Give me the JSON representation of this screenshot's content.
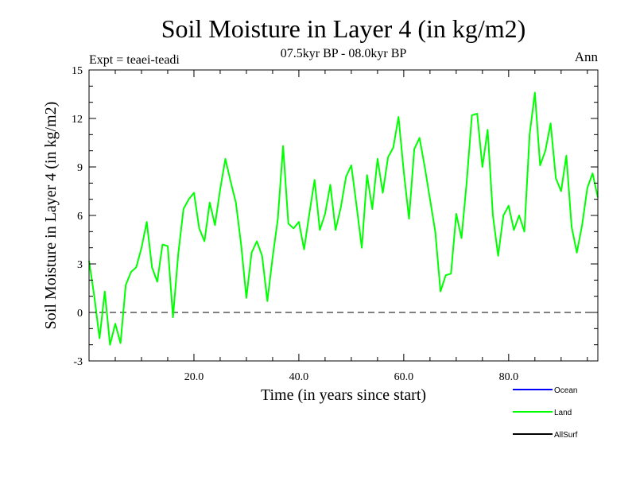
{
  "chart_data": {
    "type": "line",
    "title": "Soil Moisture in Layer 4 (in kg/m2)",
    "subtitle": "07.5kyr BP - 08.0kyr BP",
    "expt_label": "Expt = teaei-teadi",
    "season_label": "Ann",
    "xlabel": "Time (in years since start)",
    "ylabel": "Soil Moisture in Layer 4 (in kg/m2)",
    "xlim": [
      0,
      97
    ],
    "ylim": [
      -3,
      15
    ],
    "x_ticks": [
      20,
      40,
      60,
      80
    ],
    "x_tick_labels": [
      "20.0",
      "40.0",
      "60.0",
      "80.0"
    ],
    "y_ticks": [
      -3,
      0,
      3,
      6,
      9,
      12,
      15
    ],
    "y_tick_labels": [
      "-3",
      "0",
      "3",
      "6",
      "9",
      "12",
      "15"
    ],
    "reference_line": 0,
    "legend": [
      {
        "name": "Ocean",
        "color": "#0000ff"
      },
      {
        "name": "Land",
        "color": "#00ff00"
      },
      {
        "name": "AllSurf",
        "color": "#000000"
      }
    ],
    "series": [
      {
        "name": "Land",
        "color": "#00ff00",
        "x": [
          0,
          1,
          2,
          3,
          4,
          5,
          6,
          7,
          8,
          9,
          10,
          11,
          12,
          13,
          14,
          15,
          16,
          17,
          18,
          19,
          20,
          21,
          22,
          23,
          24,
          25,
          26,
          27,
          28,
          29,
          30,
          31,
          32,
          33,
          34,
          35,
          36,
          37,
          38,
          39,
          40,
          41,
          42,
          43,
          44,
          45,
          46,
          47,
          48,
          49,
          50,
          51,
          52,
          53,
          54,
          55,
          56,
          57,
          58,
          59,
          60,
          61,
          62,
          63,
          64,
          65,
          66,
          67,
          68,
          69,
          70,
          71,
          72,
          73,
          74,
          75,
          76,
          77,
          78,
          79,
          80,
          81,
          82,
          83,
          84,
          85,
          86,
          87,
          88,
          89,
          90,
          91,
          92,
          93,
          94,
          95,
          96,
          97
        ],
        "values": [
          3.2,
          1.0,
          -1.6,
          1.3,
          -2.0,
          -0.7,
          -1.9,
          1.7,
          2.5,
          2.8,
          4.0,
          5.6,
          2.8,
          1.9,
          4.2,
          4.1,
          -0.3,
          3.6,
          6.4,
          7.0,
          7.4,
          5.2,
          4.4,
          6.8,
          5.4,
          7.6,
          9.5,
          8.1,
          6.8,
          4.2,
          0.9,
          3.7,
          4.4,
          3.5,
          0.7,
          3.4,
          5.8,
          10.3,
          5.5,
          5.2,
          5.6,
          3.9,
          6.1,
          8.2,
          5.1,
          6.1,
          7.9,
          5.1,
          6.5,
          8.4,
          9.1,
          6.6,
          4.0,
          8.5,
          6.4,
          9.5,
          7.4,
          9.6,
          10.2,
          12.1,
          8.7,
          5.8,
          10.1,
          10.8,
          9.0,
          7.0,
          5.0,
          1.3,
          2.3,
          2.4,
          6.1,
          4.6,
          8.1,
          12.2,
          12.3,
          9.0,
          11.3,
          6.0,
          3.5,
          6.0,
          6.6,
          5.1,
          6.0,
          5.0,
          11.0,
          13.6,
          9.1,
          10.0,
          11.7,
          8.3,
          7.5,
          9.7,
          5.3,
          3.7,
          5.4,
          7.7,
          8.6,
          7.1
        ]
      }
    ]
  }
}
